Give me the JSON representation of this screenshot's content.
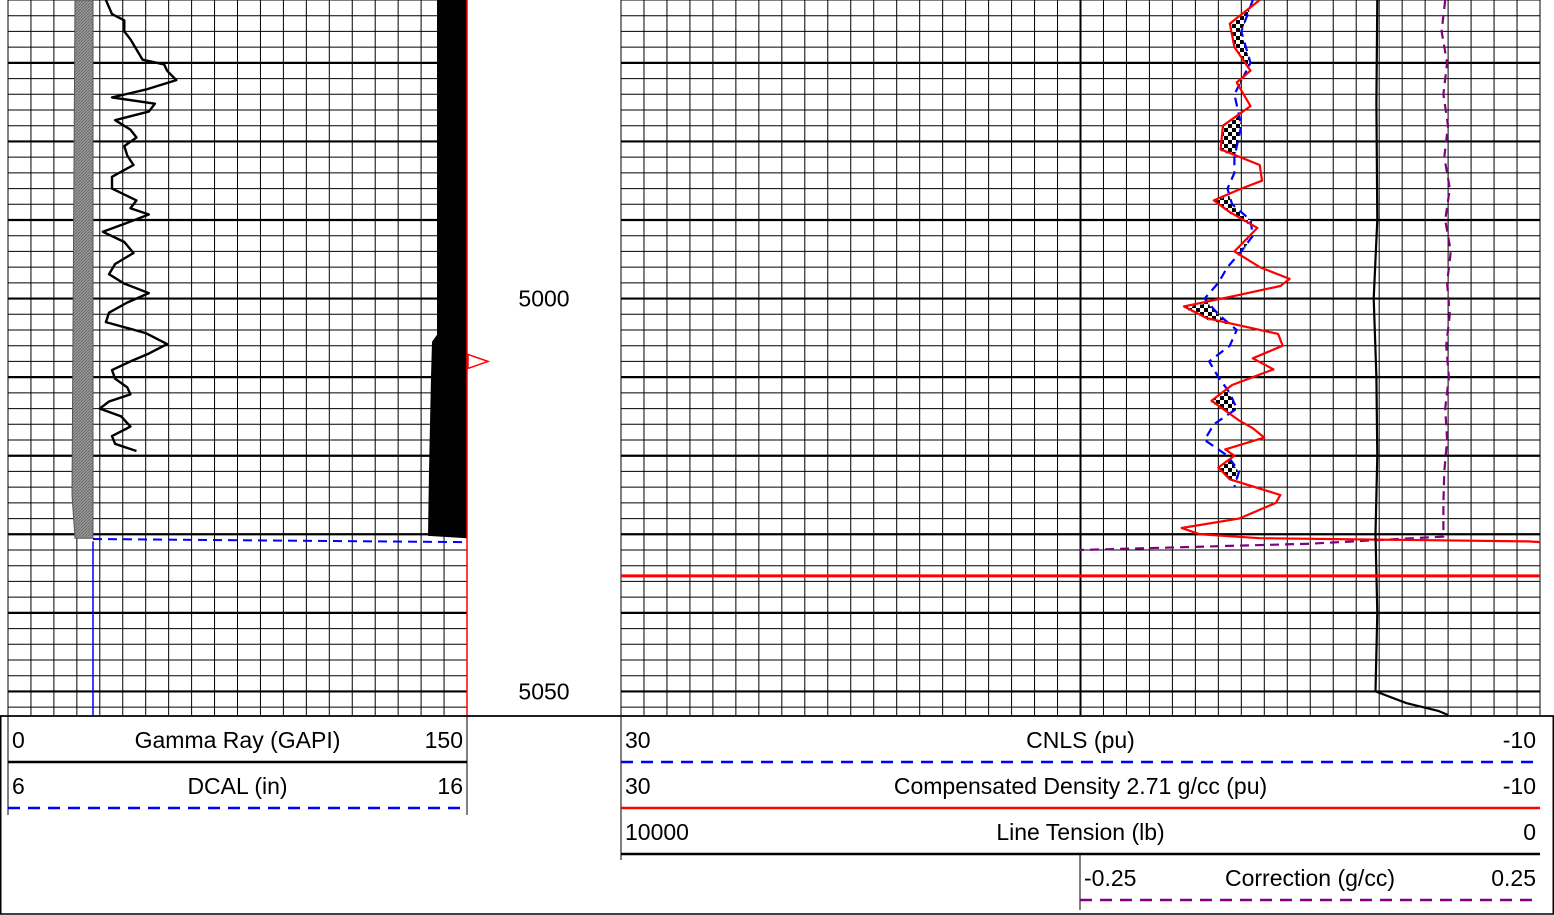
{
  "chart_data": {
    "type": "line",
    "title": "",
    "depth_axis": {
      "unit": "",
      "range": [
        4962,
        5053
      ],
      "tick_labels": [
        "5000",
        "5050"
      ],
      "major_every": 10,
      "minor_every": 2
    },
    "track1": {
      "grid": "linear",
      "curves": [
        {
          "name": "Gamma Ray (GAPI)",
          "min": "0",
          "max": "150",
          "scale": [
            0,
            150
          ],
          "color": "#000000",
          "style": "solid",
          "points": [
            [
              4962,
              32
            ],
            [
              4963.8,
              34
            ],
            [
              4964.6,
              38
            ],
            [
              4966,
              38
            ],
            [
              4967,
              40
            ],
            [
              4969.6,
              44
            ],
            [
              4970.2,
              51
            ],
            [
              4971,
              52
            ],
            [
              4972.2,
              55
            ],
            [
              4973.4,
              45
            ],
            [
              4974.4,
              34
            ],
            [
              4975.2,
              48
            ],
            [
              4976.2,
              46
            ],
            [
              4977.3,
              35
            ],
            [
              4978.5,
              40
            ],
            [
              4979.5,
              42
            ],
            [
              4980.6,
              38
            ],
            [
              4981.8,
              39
            ],
            [
              4983,
              41
            ],
            [
              4984.5,
              34
            ],
            [
              4986,
              34
            ],
            [
              4987.5,
              42
            ],
            [
              4988.5,
              40
            ],
            [
              4989.3,
              46
            ],
            [
              4990.5,
              38
            ],
            [
              4991.5,
              31
            ],
            [
              4992.8,
              38
            ],
            [
              4994.2,
              41
            ],
            [
              4995.6,
              35
            ],
            [
              4996.9,
              33
            ],
            [
              4998.1,
              38
            ],
            [
              4999.3,
              46
            ],
            [
              5000.5,
              39
            ],
            [
              5001.8,
              33
            ],
            [
              5003,
              32
            ],
            [
              5004.4,
              45
            ],
            [
              5005.8,
              52
            ],
            [
              5007,
              46
            ],
            [
              5008,
              40
            ],
            [
              5009.1,
              34
            ],
            [
              5010.2,
              35
            ],
            [
              5011.3,
              39
            ],
            [
              5012.2,
              40
            ],
            [
              5013.1,
              33
            ],
            [
              5014,
              30
            ],
            [
              5015,
              37
            ],
            [
              5016.3,
              40
            ],
            [
              5017.5,
              34
            ],
            [
              5018.5,
              35
            ],
            [
              5019.4,
              42
            ]
          ]
        },
        {
          "name": "DCAL (in)",
          "min": "6",
          "max": "16",
          "scale": [
            6,
            16
          ],
          "color": "#0000ff",
          "style": "dashed",
          "points": [
            [
              5030.5,
              7.6
            ],
            [
              5030.9,
              9
            ],
            [
              5031,
              16
            ]
          ]
        }
      ],
      "fill_left_gr_bar": {
        "color": "#888888",
        "scale": [
          0,
          150
        ]
      },
      "right_black_fill": {
        "color": "#000000"
      }
    },
    "track2": {
      "grid": "linear",
      "curves": [
        {
          "name": "CNLS (pu)",
          "min": "30",
          "max": "-10",
          "scale": [
            30,
            -10
          ],
          "color": "#0000ff",
          "style": "dashed",
          "points": [
            [
              4962,
              2.5
            ],
            [
              4966,
              3
            ],
            [
              4970,
              2.6
            ],
            [
              4974,
              3.3
            ],
            [
              4978,
              3.0
            ],
            [
              4982,
              3.3
            ],
            [
              4984,
              3.3
            ],
            [
              4986,
              3.6
            ],
            [
              4988,
              3.4
            ],
            [
              4990,
              2.6
            ],
            [
              4992,
              2.5
            ],
            [
              4994,
              3.0
            ],
            [
              4996,
              3.6
            ],
            [
              4998,
              4.0
            ],
            [
              5000,
              4.6
            ],
            [
              5002,
              4.0
            ],
            [
              5004,
              3.2
            ],
            [
              5006,
              3.5
            ],
            [
              5008,
              4.4
            ],
            [
              5010,
              4.0
            ],
            [
              5012,
              3.5
            ],
            [
              5014,
              3.2
            ],
            [
              5016,
              4.2
            ],
            [
              5018,
              4.6
            ],
            [
              5020,
              3.6
            ],
            [
              5022,
              3.1
            ],
            [
              5024,
              3.3
            ]
          ]
        },
        {
          "name": "Compensated Density 2.71 g/cc (pu)",
          "min": "30",
          "max": "-10",
          "scale": [
            30,
            -10
          ],
          "color": "#ff0000",
          "style": "solid",
          "points": [
            [
              4962,
              2.2
            ],
            [
              4965,
              3.5
            ],
            [
              4968,
              3.3
            ],
            [
              4971,
              2.6
            ],
            [
              4972.5,
              3.2
            ],
            [
              4975.5,
              2.6
            ],
            [
              4978,
              3.8
            ],
            [
              4981,
              3.9
            ],
            [
              4983,
              2.2
            ],
            [
              4985,
              2.1
            ],
            [
              4986,
              3.0
            ],
            [
              4987.5,
              4.2
            ],
            [
              4989,
              3.5
            ],
            [
              4991,
              2.3
            ],
            [
              4994,
              3.3
            ],
            [
              4996,
              2.2
            ],
            [
              4997.5,
              0.9
            ],
            [
              4998.4,
              1.3
            ],
            [
              4999.6,
              3.2
            ],
            [
              5001,
              5.5
            ],
            [
              5002.5,
              4.5
            ],
            [
              5004.5,
              1.4
            ],
            [
              5006,
              1.2
            ],
            [
              5007.6,
              2.5
            ],
            [
              5009,
              1.6
            ],
            [
              5011,
              3.4
            ],
            [
              5013,
              4.3
            ],
            [
              5015.5,
              3.1
            ],
            [
              5016.5,
              2.5
            ],
            [
              5017.7,
              2.0
            ],
            [
              5019.2,
              3.7
            ],
            [
              5020,
              3.3
            ],
            [
              5021.5,
              4.0
            ],
            [
              5023,
              3.5
            ],
            [
              5025,
              1.3
            ],
            [
              5026,
              1.5
            ],
            [
              5028,
              3.1
            ],
            [
              5029.2,
              5.6
            ],
            [
              5030,
              4.8
            ],
            [
              5030.5,
              2.2
            ],
            [
              5030.9,
              -9.5
            ],
            [
              5031,
              -10
            ]
          ]
        },
        {
          "name": "Line Tension (lb)",
          "min": "10000",
          "max": "0",
          "scale": [
            10000,
            0
          ],
          "color": "#000000",
          "style": "solid",
          "points": [
            [
              4962,
              1770
            ],
            [
              4975,
              1780
            ],
            [
              4990,
              1770
            ],
            [
              5000,
              1810
            ],
            [
              5010,
              1780
            ],
            [
              5020,
              1770
            ],
            [
              5030,
              1790
            ],
            [
              5040,
              1770
            ],
            [
              5050,
              1790
            ],
            [
              5051.5,
              1450
            ],
            [
              5052.5,
              1100
            ],
            [
              5053,
              1000
            ]
          ]
        }
      ],
      "shading": {
        "between": [
          "CNLS (pu)",
          "Compensated Density 2.71 g/cc (pu)"
        ],
        "pattern": "checker",
        "color": "#000000"
      }
    },
    "track2b": {
      "curves": [
        {
          "name": "Correction (g/cc)",
          "min": "-0.25",
          "max": "0.25",
          "scale": [
            -0.25,
            0.25
          ],
          "color": "#800080",
          "style": "dashed",
          "points": [
            [
              4962,
              0.147
            ],
            [
              4966,
              0.143
            ],
            [
              4970,
              0.149
            ],
            [
              4974,
              0.145
            ],
            [
              4978,
              0.15
            ],
            [
              4982,
              0.146
            ],
            [
              4986,
              0.152
            ],
            [
              4990,
              0.147
            ],
            [
              4994,
              0.153
            ],
            [
              4998,
              0.149
            ],
            [
              5002,
              0.152
            ],
            [
              5006,
              0.148
            ],
            [
              5010,
              0.151
            ],
            [
              5014,
              0.147
            ],
            [
              5018,
              0.149
            ],
            [
              5022,
              0.146
            ],
            [
              5026,
              0.145
            ],
            [
              5030.3,
              0.145
            ],
            [
              5031.2,
              0.0
            ],
            [
              5032,
              -0.25
            ]
          ]
        }
      ]
    },
    "horizontal_marker": {
      "depth": 5035.3,
      "color": "#ff0000",
      "span": "track2"
    },
    "depth_marker": {
      "depth": 5008,
      "color": "#ff0000",
      "shape": "triangle"
    }
  }
}
